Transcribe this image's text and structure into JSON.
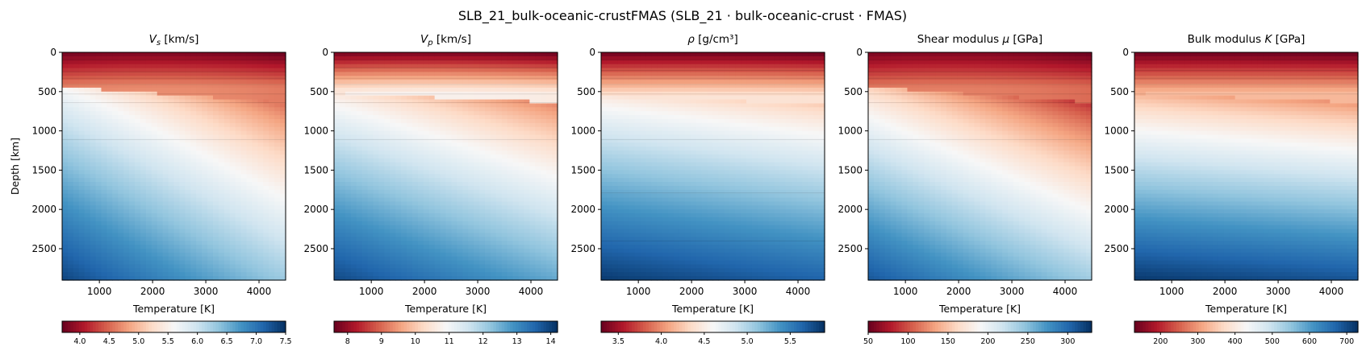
{
  "figure": {
    "title": "SLB_21_bulk-oceanic-crustFMAS   (SLB_21 · bulk-oceanic-crust · FMAS)"
  },
  "colormap": {
    "name": "RdBu",
    "stops": [
      "#67001f",
      "#b2182b",
      "#d6604d",
      "#f4a582",
      "#fddbc7",
      "#f7f7f7",
      "#d1e5f0",
      "#92c5de",
      "#4393c3",
      "#2166ac",
      "#053061"
    ]
  },
  "chart_data": [
    {
      "type": "heatmap",
      "title_symbol": "V",
      "title_sub": "s",
      "title_unit": " [km/s]",
      "xlabel": "Temperature [K]",
      "ylabel": "Depth [km]",
      "xlim": [
        300,
        4500
      ],
      "ylim": [
        2900,
        0
      ],
      "xticks": [
        "1000",
        "2000",
        "3000",
        "4000"
      ],
      "yticks": [
        "0",
        "500",
        "1000",
        "1500",
        "2000",
        "2500"
      ],
      "colorbar": {
        "range": [
          3.7,
          7.5
        ],
        "ticks": [
          "4.0",
          "4.5",
          "5.0",
          "5.5",
          "6.0",
          "6.5",
          "7.0",
          "7.5"
        ]
      },
      "field": {
        "shallow_boundary_km": [
          440,
          640
        ],
        "shallow_gradient_km": [
          0,
          440
        ],
        "shallow_value_range": [
          3.7,
          4.6
        ],
        "deep_value_range": [
          5.7,
          7.5
        ],
        "temperature_decrease": [
          0.15,
          1.2
        ],
        "layers_km": [
          100,
          250,
          330,
          410,
          530,
          640,
          1110
        ]
      }
    },
    {
      "type": "heatmap",
      "title_symbol": "V",
      "title_sub": "p",
      "title_unit": " [km/s]",
      "xlabel": "Temperature [K]",
      "ylabel": "",
      "xlim": [
        300,
        4500
      ],
      "ylim": [
        2900,
        0
      ],
      "xticks": [
        "1000",
        "2000",
        "3000",
        "4000"
      ],
      "yticks": [
        "0",
        "500",
        "1000",
        "1500",
        "2000",
        "2500"
      ],
      "colorbar": {
        "range": [
          7.6,
          14.2
        ],
        "ticks": [
          "8",
          "9",
          "10",
          "11",
          "12",
          "13",
          "14"
        ]
      },
      "field": {
        "shallow_boundary_km": [
          520,
          640
        ],
        "shallow_gradient_km": [
          0,
          520
        ],
        "shallow_value_range": [
          7.6,
          10.6
        ],
        "deep_value_range": [
          10.8,
          14.2
        ],
        "temperature_decrease": [
          0.3,
          1.6
        ],
        "layers_km": [
          100,
          200,
          330,
          410,
          530,
          640,
          1110
        ]
      }
    },
    {
      "type": "heatmap",
      "title_symbol": "ρ",
      "title_sub": "",
      "title_unit": " [g/cm³]",
      "xlabel": "Temperature [K]",
      "ylabel": "",
      "xlim": [
        300,
        4500
      ],
      "ylim": [
        2900,
        0
      ],
      "xticks": [
        "1000",
        "2000",
        "3000",
        "4000"
      ],
      "yticks": [
        "0",
        "500",
        "1000",
        "1500",
        "2000",
        "2500"
      ],
      "colorbar": {
        "range": [
          3.3,
          5.9
        ],
        "ticks": [
          "3.5",
          "4.0",
          "4.5",
          "5.0",
          "5.5"
        ]
      },
      "field": {
        "shallow_boundary_km": [
          560,
          660
        ],
        "shallow_gradient_km": [
          0,
          560
        ],
        "shallow_value_range": [
          3.3,
          4.4
        ],
        "deep_value_range": [
          4.5,
          5.9
        ],
        "temperature_decrease": [
          0.05,
          0.25
        ],
        "layers_km": [
          100,
          230,
          330,
          410,
          530,
          1110,
          1790,
          2400
        ]
      }
    },
    {
      "type": "heatmap",
      "title_symbol": "Shear modulus ",
      "title_sub": "",
      "title_italic": "μ",
      "title_unit": " [GPa]",
      "xlabel": "Temperature [K]",
      "ylabel": "",
      "xlim": [
        300,
        4500
      ],
      "ylim": [
        2900,
        0
      ],
      "xticks": [
        "1000",
        "2000",
        "3000",
        "4000"
      ],
      "yticks": [
        "0",
        "500",
        "1000",
        "1500",
        "2000",
        "2500"
      ],
      "colorbar": {
        "range": [
          50,
          330
        ],
        "ticks": [
          "50",
          "100",
          "150",
          "200",
          "250",
          "300"
        ]
      },
      "field": {
        "shallow_boundary_km": [
          440,
          640
        ],
        "shallow_gradient_km": [
          0,
          440
        ],
        "shallow_value_range": [
          50,
          110
        ],
        "deep_value_range": [
          175,
          330
        ],
        "temperature_decrease": [
          20,
          90
        ],
        "layers_km": [
          100,
          250,
          330,
          410,
          530,
          640,
          1110
        ]
      }
    },
    {
      "type": "heatmap",
      "title_symbol": "Bulk modulus ",
      "title_sub": "",
      "title_italic": "K",
      "title_unit": " [GPa]",
      "xlabel": "Temperature [K]",
      "ylabel": "",
      "xlim": [
        300,
        4500
      ],
      "ylim": [
        2900,
        0
      ],
      "xticks": [
        "1000",
        "2000",
        "3000",
        "4000"
      ],
      "yticks": [
        "0",
        "500",
        "1000",
        "1500",
        "2000",
        "2500"
      ],
      "colorbar": {
        "range": [
          130,
          730
        ],
        "ticks": [
          "200",
          "300",
          "400",
          "500",
          "600",
          "700"
        ]
      },
      "field": {
        "shallow_boundary_km": [
          520,
          640
        ],
        "shallow_gradient_km": [
          0,
          520
        ],
        "shallow_value_range": [
          130,
          330
        ],
        "deep_value_range": [
          330,
          730
        ],
        "temperature_decrease": [
          10,
          40
        ],
        "layers_km": [
          100,
          230,
          330,
          410,
          530
        ]
      }
    }
  ]
}
